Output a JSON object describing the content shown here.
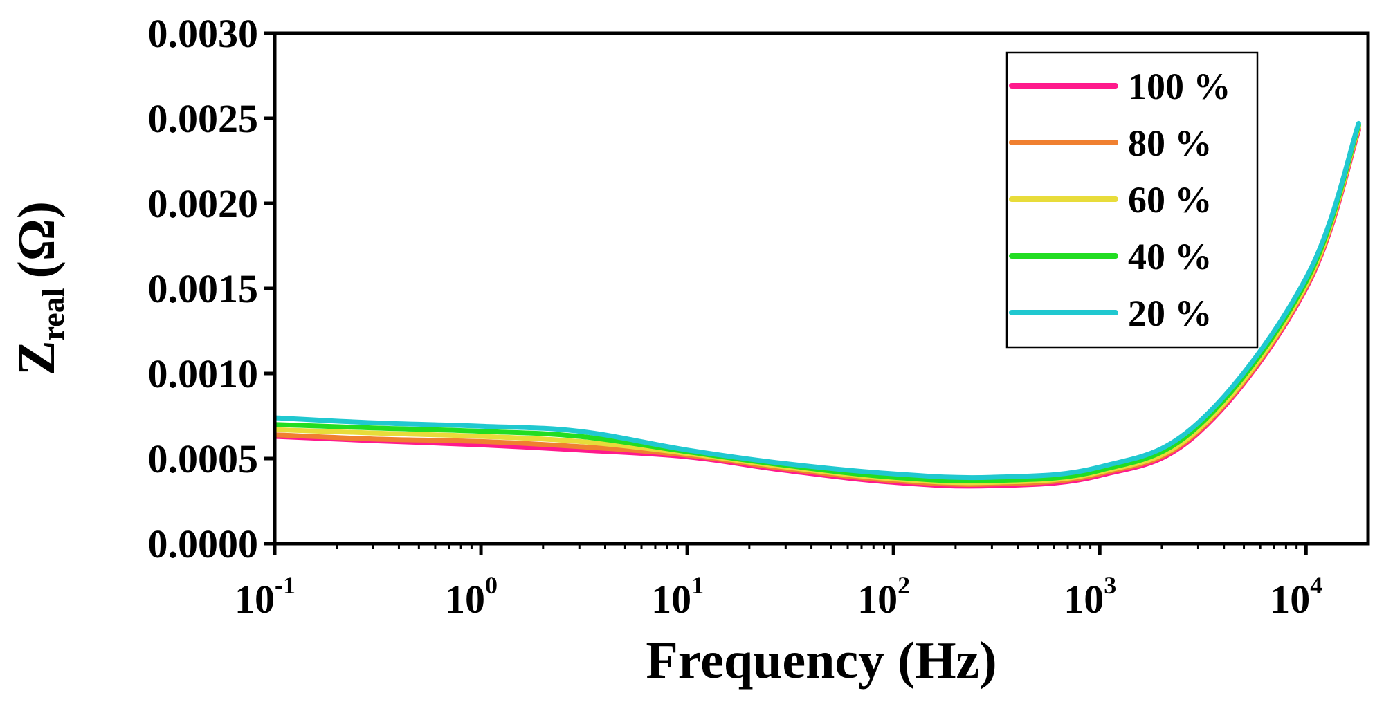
{
  "chart_data": {
    "type": "line",
    "xscale": "log",
    "xlabel": "Frequency (Hz)",
    "ylabel": {
      "base": "Z",
      "subscript": "real",
      "unit": "(Ω)"
    },
    "xlim": [
      0.1,
      20000
    ],
    "ylim": [
      0,
      0.003
    ],
    "grid": false,
    "legend_position": "top-right",
    "y_ticks": [
      "0.0000",
      "0.0005",
      "0.0010",
      "0.0015",
      "0.0020",
      "0.0025",
      "0.0030"
    ],
    "y_tick_values": [
      0,
      0.0005,
      0.001,
      0.0015,
      0.002,
      0.0025,
      0.003
    ],
    "x_ticks": [
      {
        "value": 0.1,
        "base": "10",
        "exp": "-1"
      },
      {
        "value": 1,
        "base": "10",
        "exp": "0"
      },
      {
        "value": 10,
        "base": "10",
        "exp": "1"
      },
      {
        "value": 100,
        "base": "10",
        "exp": "2"
      },
      {
        "value": 1000,
        "base": "10",
        "exp": "3"
      },
      {
        "value": 10000,
        "base": "10",
        "exp": "4"
      }
    ],
    "x": [
      0.1,
      0.3,
      1,
      3,
      10,
      30,
      100,
      300,
      1000,
      3000,
      10000,
      18000
    ],
    "series": [
      {
        "name": "100 %",
        "color": "#ff1a8c",
        "values": [
          0.00063,
          0.000605,
          0.00058,
          0.00055,
          0.00051,
          0.00043,
          0.00036,
          0.00034,
          0.0004,
          0.00065,
          0.0015,
          0.00243
        ]
      },
      {
        "name": "80 %",
        "color": "#f08030",
        "values": [
          0.00064,
          0.000615,
          0.0006,
          0.00057,
          0.00052,
          0.00044,
          0.00037,
          0.00035,
          0.00041,
          0.00066,
          0.00151,
          0.00244
        ]
      },
      {
        "name": "60 %",
        "color": "#e8dc3a",
        "values": [
          0.00067,
          0.00065,
          0.00063,
          0.0006,
          0.00053,
          0.00045,
          0.00038,
          0.00036,
          0.00042,
          0.00067,
          0.00152,
          0.00245
        ]
      },
      {
        "name": "40 %",
        "color": "#22dd22",
        "values": [
          0.0007,
          0.00068,
          0.00066,
          0.00063,
          0.00054,
          0.00046,
          0.00039,
          0.00037,
          0.00043,
          0.00069,
          0.00154,
          0.00246
        ]
      },
      {
        "name": "20 %",
        "color": "#20c8d0",
        "values": [
          0.00074,
          0.00071,
          0.00069,
          0.00066,
          0.00055,
          0.00047,
          0.00041,
          0.00039,
          0.00045,
          0.00071,
          0.00156,
          0.00247
        ]
      }
    ]
  }
}
